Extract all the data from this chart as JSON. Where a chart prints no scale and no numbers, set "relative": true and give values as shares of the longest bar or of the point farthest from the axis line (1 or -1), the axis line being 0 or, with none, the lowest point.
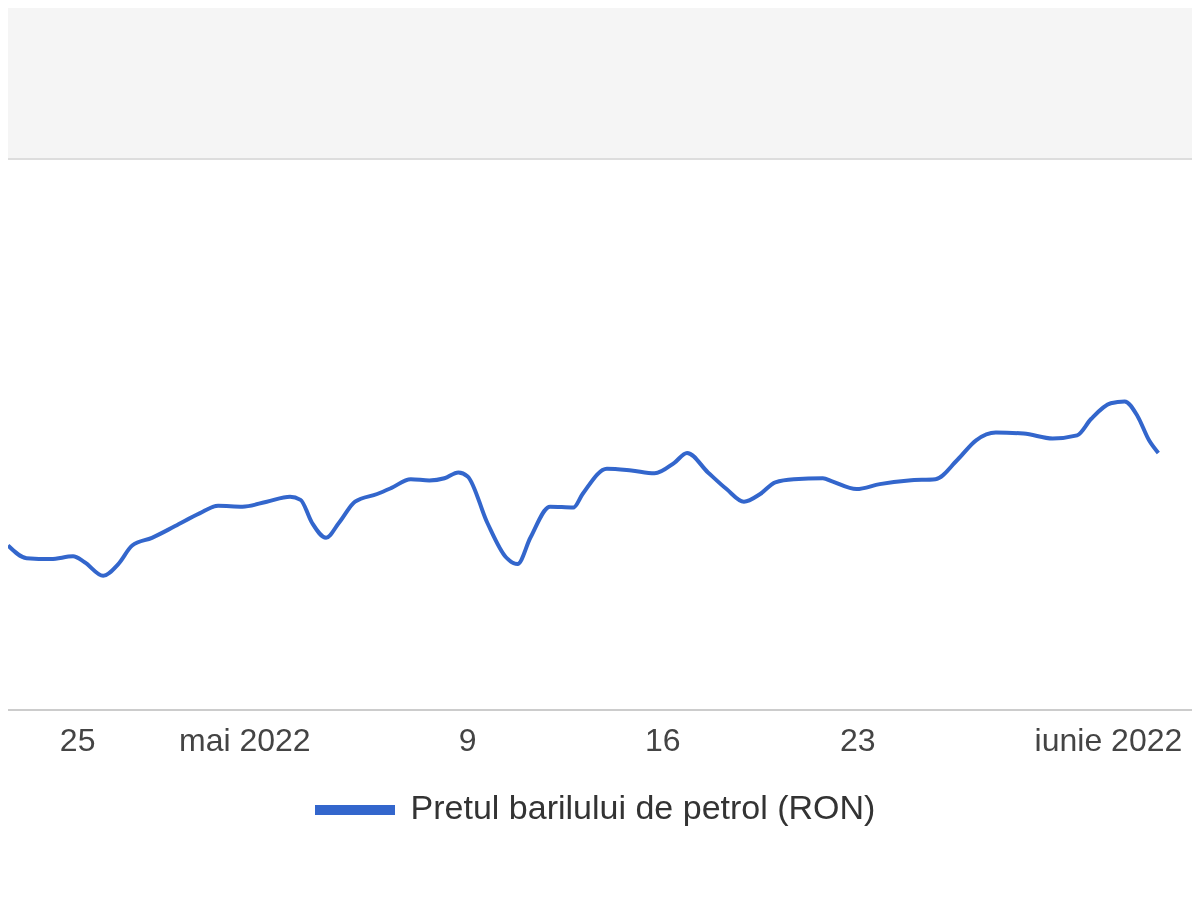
{
  "chart_data": {
    "type": "line",
    "relative": true,
    "legend": "bottom",
    "marker": "none",
    "line_style": "solid",
    "xlim": [
      "2022-04-22T12:00",
      "2022-06-04T00:00"
    ],
    "xticks": [
      {
        "value": "2022-04-25",
        "label": "25"
      },
      {
        "value": "2022-05-01",
        "label": "mai 2022"
      },
      {
        "value": "2022-05-09",
        "label": "9"
      },
      {
        "value": "2022-05-16",
        "label": "16"
      },
      {
        "value": "2022-05-23",
        "label": "23"
      },
      {
        "value": "2022-06-01",
        "label": "iunie 2022"
      }
    ],
    "x": [
      "2022-04-22T12:00",
      "2022-04-23T04:00",
      "2022-04-24T01:00",
      "2022-04-24T20:00",
      "2022-04-25T06:00",
      "2022-04-25T22:00",
      "2022-04-26T11:00",
      "2022-04-26T23:00",
      "2022-04-27T16:00",
      "2022-04-28T12:00",
      "2022-04-29T09:00",
      "2022-04-30T01:00",
      "2022-04-30T22:00",
      "2022-05-01T19:00",
      "2022-05-02T15:00",
      "2022-05-03T00:00",
      "2022-05-03T10:00",
      "2022-05-03T22:00",
      "2022-05-04T09:00",
      "2022-05-04T23:00",
      "2022-05-05T18:00",
      "2022-05-06T06:00",
      "2022-05-06T23:00",
      "2022-05-07T15:00",
      "2022-05-08T04:00",
      "2022-05-08T16:00",
      "2022-05-09T00:00",
      "2022-05-09T17:00",
      "2022-05-10T09:00",
      "2022-05-10T19:00",
      "2022-05-11T06:00",
      "2022-05-11T23:00",
      "2022-05-12T19:00",
      "2022-05-13T03:00",
      "2022-05-14T00:00",
      "2022-05-14T21:00",
      "2022-05-15T17:00",
      "2022-05-16T10:00",
      "2022-05-16T21:00",
      "2022-05-17T15:00",
      "2022-05-18T07:00",
      "2022-05-18T22:00",
      "2022-05-19T12:00",
      "2022-05-20T01:00",
      "2022-05-20T17:00",
      "2022-05-21T18:00",
      "2022-05-22T02:00",
      "2022-05-22T23:00",
      "2022-05-23T19:00",
      "2022-05-24T20:00",
      "2022-05-25T19:00",
      "2022-05-26T14:00",
      "2022-05-27T06:00",
      "2022-05-27T23:00",
      "2022-05-28T23:00",
      "2022-05-30T00:00",
      "2022-05-30T21:00",
      "2022-05-31T09:00",
      "2022-06-01T02:00",
      "2022-06-01T14:00",
      "2022-06-02T01:00",
      "2022-06-02T11:00",
      "2022-06-02T19:00"
    ],
    "series": [
      {
        "name": "Pretul barilului de petrol (RON)",
        "color": "#3366cc",
        "values": [
          0.533,
          0.492,
          0.489,
          0.498,
          0.479,
          0.435,
          0.473,
          0.533,
          0.558,
          0.596,
          0.637,
          0.662,
          0.659,
          0.675,
          0.691,
          0.681,
          0.606,
          0.558,
          0.606,
          0.675,
          0.7,
          0.719,
          0.748,
          0.744,
          0.751,
          0.77,
          0.757,
          0.606,
          0.495,
          0.473,
          0.558,
          0.659,
          0.656,
          0.7,
          0.782,
          0.776,
          0.767,
          0.801,
          0.833,
          0.77,
          0.716,
          0.675,
          0.7,
          0.738,
          0.748,
          0.751,
          0.741,
          0.716,
          0.732,
          0.744,
          0.748,
          0.811,
          0.874,
          0.899,
          0.896,
          0.88,
          0.89,
          0.943,
          0.994,
          1,
          0.953,
          0.874,
          0.833
        ]
      }
    ]
  }
}
